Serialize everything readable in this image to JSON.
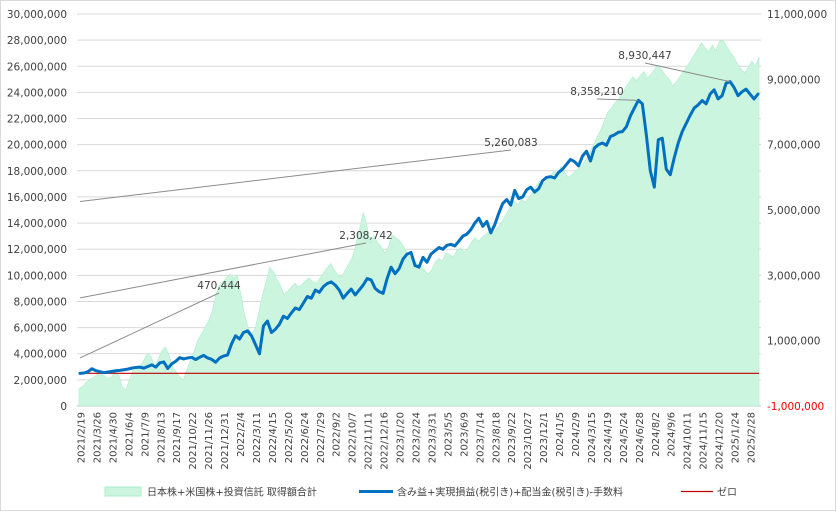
{
  "chart_data": {
    "type": "line",
    "subtypes": {
      "left_axis_series": "area",
      "right_axis_series": "line",
      "zero_series": "line"
    },
    "grid": true,
    "legend_placement": "bottom",
    "y_left": {
      "ylim": [
        0,
        30000000
      ],
      "ticks": [
        0,
        2000000,
        4000000,
        6000000,
        8000000,
        10000000,
        12000000,
        14000000,
        16000000,
        18000000,
        20000000,
        22000000,
        24000000,
        26000000,
        28000000,
        30000000
      ],
      "tick_labels": [
        "0",
        "2,000,000",
        "4,000,000",
        "6,000,000",
        "8,000,000",
        "10,000,000",
        "12,000,000",
        "14,000,000",
        "16,000,000",
        "18,000,000",
        "20,000,000",
        "22,000,000",
        "24,000,000",
        "26,000,000",
        "28,000,000",
        "30,000,000"
      ]
    },
    "y_right": {
      "ylim": [
        -1000000,
        11000000
      ],
      "ticks": [
        -1000000,
        1000000,
        3000000,
        5000000,
        7000000,
        9000000,
        11000000
      ],
      "tick_labels": [
        "-1,000,000",
        "1,000,000",
        "3,000,000",
        "5,000,000",
        "7,000,000",
        "9,000,000",
        "11,000,000"
      ],
      "negative_color": "#ff0000"
    },
    "x_tick_labels": [
      "2021/2/19",
      "2021/3/26",
      "2021/4/30",
      "2021/6/4",
      "2021/7/9",
      "2021/8/13",
      "2021/9/17",
      "2021/10/22",
      "2021/11/26",
      "2021/12/31",
      "2022/2/4",
      "2022/3/11",
      "2022/4/15",
      "2022/5/20",
      "2022/6/24",
      "2022/7/29",
      "2022/9/2",
      "2022/10/7",
      "2022/11/11",
      "2022/12/16",
      "2023/1/20",
      "2023/2/24",
      "2023/3/31",
      "2023/5/5",
      "2023/6/9",
      "2023/7/14",
      "2023/8/18",
      "2023/9/22",
      "2023/10/27",
      "2023/12/1",
      "2024/1/5",
      "2024/2/9",
      "2024/3/15",
      "2024/4/19",
      "2024/5/24",
      "2024/6/28",
      "2024/8/2",
      "2024/9/6",
      "2024/10/11",
      "2024/11/15",
      "2024/12/20",
      "2025/1/24",
      "2025/2/28"
    ],
    "series": [
      {
        "name": "日本株+米国株+投資信託 取得額合計",
        "axis": "left",
        "color": "#ccf5e0",
        "edge_color": "#aaeeca",
        "values": [
          1300000,
          1500000,
          1800000,
          2000000,
          2200000,
          2400000,
          2500000,
          2300000,
          2100000,
          2200000,
          2600000,
          2400000,
          1500000,
          1200000,
          2000000,
          2700000,
          2800000,
          3000000,
          3500000,
          4000000,
          3800000,
          3000000,
          3600000,
          4200000,
          4500000,
          3900000,
          3000000,
          2600000,
          2200000,
          2000000,
          2800000,
          3500000,
          4200000,
          5000000,
          5500000,
          6000000,
          6500000,
          7200000,
          8500000,
          9200000,
          9500000,
          9800000,
          10100000,
          9800000,
          10000000,
          8500000,
          7000000,
          6000000,
          5500000,
          6000000,
          7200000,
          8500000,
          9500000,
          10600000,
          10300000,
          9700000,
          9200000,
          8500000,
          8800000,
          9100000,
          9400000,
          9100000,
          9300000,
          9600000,
          9800000,
          9500000,
          9400000,
          9800000,
          10200000,
          10600000,
          10900000,
          10400000,
          10000000,
          9900000,
          10400000,
          10900000,
          11400000,
          12400000,
          13500000,
          14800000,
          13800000,
          12500000,
          13000000,
          12500000,
          12200000,
          11700000,
          12200000,
          13100000,
          12900000,
          12700000,
          12300000,
          11800000,
          11400000,
          11200000,
          10900000,
          10700000,
          10400000,
          10100000,
          10400000,
          11000000,
          11300000,
          11100000,
          11700000,
          11600000,
          11400000,
          11900000,
          12100000,
          11800000,
          12000000,
          12500000,
          12900000,
          12600000,
          12900000,
          13100000,
          13400000,
          13200000,
          13500000,
          13900000,
          14300000,
          14800000,
          15300000,
          15700000,
          15400000,
          15800000,
          15600000,
          15900000,
          16300000,
          16800000,
          17200000,
          16900000,
          17300000,
          17600000,
          18000000,
          17800000,
          18300000,
          17900000,
          17500000,
          17700000,
          18000000,
          18200000,
          18500000,
          18900000,
          19400000,
          20000000,
          20600000,
          21100000,
          21800000,
          22500000,
          22800000,
          23200000,
          23500000,
          23900000,
          24400000,
          24800000,
          25200000,
          24900000,
          25300000,
          25600000,
          25100000,
          25400000,
          25800000,
          26100000,
          25700000,
          25300000,
          25000000,
          24500000,
          24800000,
          25200000,
          25600000,
          26000000,
          26400000,
          26900000,
          27300000,
          27800000,
          27400000,
          27100000,
          27600000,
          27200000,
          27900000,
          28000000,
          27500000,
          27100000,
          26700000,
          26200000,
          25800000,
          25500000,
          25900000,
          26400000,
          26000000,
          26700000
        ]
      },
      {
        "name": "含み益+実現損益(税引き)+配当金(税引き)-手数料",
        "axis": "right",
        "color": "#0070c0",
        "values": [
          0,
          10000,
          50000,
          140000,
          80000,
          50000,
          20000,
          40000,
          60000,
          80000,
          90000,
          110000,
          130000,
          160000,
          180000,
          190000,
          160000,
          210000,
          260000,
          190000,
          320000,
          350000,
          150000,
          290000,
          370000,
          480000,
          440000,
          470000,
          490000,
          420000,
          490000,
          550000,
          470000,
          430000,
          340000,
          470000,
          530000,
          560000,
          900000,
          1150000,
          1050000,
          1250000,
          1300000,
          1150000,
          880000,
          600000,
          1450000,
          1600000,
          1250000,
          1350000,
          1500000,
          1750000,
          1680000,
          1850000,
          2000000,
          1950000,
          2150000,
          2350000,
          2300000,
          2550000,
          2480000,
          2650000,
          2750000,
          2800000,
          2700000,
          2550000,
          2300000,
          2450000,
          2580000,
          2400000,
          2550000,
          2700000,
          2900000,
          2860000,
          2600000,
          2500000,
          2450000,
          2900000,
          3250000,
          3050000,
          3200000,
          3500000,
          3650000,
          3700000,
          3300000,
          3250000,
          3550000,
          3400000,
          3650000,
          3750000,
          3850000,
          3800000,
          3920000,
          3950000,
          3900000,
          4050000,
          4200000,
          4260000,
          4400000,
          4600000,
          4750000,
          4500000,
          4650000,
          4300000,
          4550000,
          4900000,
          5200000,
          5320000,
          5150000,
          5600000,
          5350000,
          5400000,
          5620000,
          5700000,
          5550000,
          5650000,
          5900000,
          6000000,
          6020000,
          5980000,
          6150000,
          6250000,
          6400000,
          6550000,
          6480000,
          6350000,
          6650000,
          6800000,
          6500000,
          6900000,
          7000000,
          7050000,
          6980000,
          7250000,
          7300000,
          7380000,
          7400000,
          7550000,
          7880000,
          8120000,
          8358210,
          8250000,
          7300000,
          6200000,
          5700000,
          7150000,
          7200000,
          6250000,
          6080000,
          6600000,
          7050000,
          7400000,
          7650000,
          7900000,
          8120000,
          8220000,
          8350000,
          8250000,
          8550000,
          8680000,
          8400000,
          8500000,
          8880000,
          8930447,
          8750000,
          8500000,
          8620000,
          8700000,
          8550000,
          8400000,
          8550000
        ],
        "points": [
          {
            "x": 0,
            "y": 0
          },
          {
            "x": 8,
            "y": 100000
          },
          {
            "x": 11,
            "y": 40000
          },
          {
            "x": 20,
            "y": 130000
          },
          {
            "x": 32,
            "y": 200000
          },
          {
            "x": 40,
            "y": 280000
          },
          {
            "x": 45,
            "y": 140000
          },
          {
            "x": 50,
            "y": 440000
          },
          {
            "x": 58,
            "y": 380000
          },
          {
            "x": 62,
            "y": 470444
          },
          {
            "x": 71,
            "y": 280000
          },
          {
            "x": 80,
            "y": 1200000
          },
          {
            "x": 95,
            "y": 1850000
          },
          {
            "x": 110,
            "y": 2308742
          },
          {
            "x": 125,
            "y": 3500000
          },
          {
            "x": 140,
            "y": 4700000
          },
          {
            "x": 150,
            "y": 5260083
          },
          {
            "x": 160,
            "y": 6600000
          },
          {
            "x": 166,
            "y": 7300000
          },
          {
            "x": 175,
            "y": 8358210
          },
          {
            "x": 181,
            "y": 5700000
          },
          {
            "x": 189,
            "y": 6100000
          },
          {
            "x": 198,
            "y": 8250000
          },
          {
            "x": 205,
            "y": 8930447
          },
          {
            "x": 213,
            "y": 8550000
          }
        ],
        "x_count": 214
      },
      {
        "name": "ゼロ",
        "axis": "right",
        "color": "#c00000",
        "values": [
          0,
          0
        ]
      }
    ],
    "annotations": [
      {
        "label": "470,444",
        "series": 1,
        "value": 470444
      },
      {
        "label": "2,308,742",
        "series": 1,
        "value": 2308742
      },
      {
        "label": "5,260,083",
        "series": 1,
        "value": 5260083
      },
      {
        "label": "8,358,210",
        "series": 1,
        "value": 8358210
      },
      {
        "label": "8,930,447",
        "series": 1,
        "value": 8930447
      }
    ]
  }
}
